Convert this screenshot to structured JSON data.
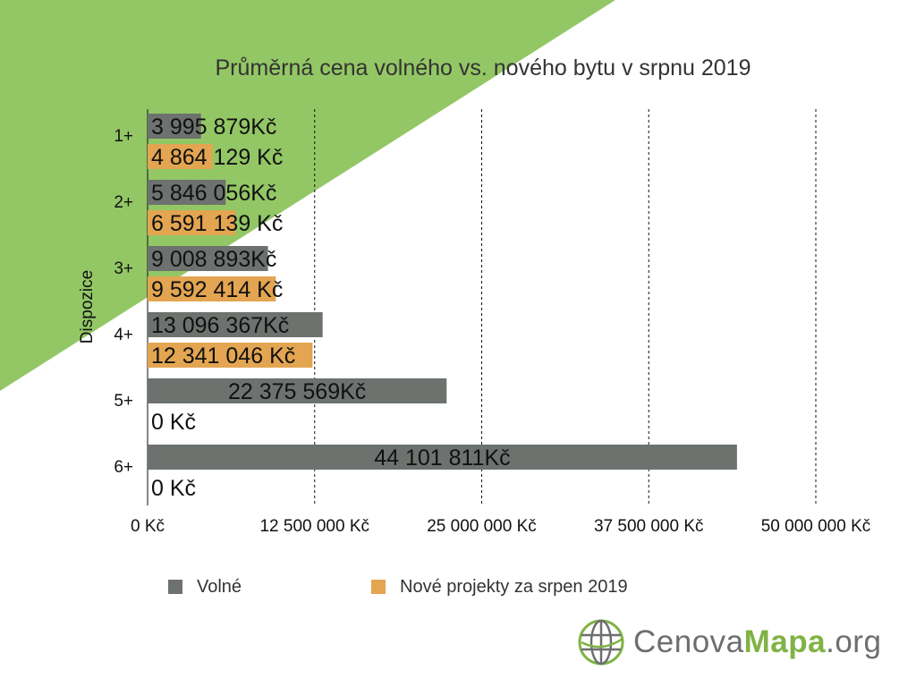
{
  "colors": {
    "background_triangle": "#93c765",
    "volne": "#6d726f",
    "nove": "#e3a551",
    "grid": "#111111",
    "text": "#111111",
    "logo_grey": "#6d6e70",
    "logo_green": "#7fb344"
  },
  "chart_data": {
    "type": "bar",
    "orientation": "horizontal",
    "title": "Průměrná cena volného vs. nového bytu v srpnu 2019",
    "ylabel": "Dispozice",
    "xlabel": "",
    "categories": [
      "1+",
      "2+",
      "3+",
      "4+",
      "5+",
      "6+"
    ],
    "xlim": [
      0,
      50000000
    ],
    "xticks": [
      0,
      12500000,
      25000000,
      37500000,
      50000000
    ],
    "xtick_labels": [
      "0 Kč",
      "12 500 000 Kč",
      "25 000 000 Kč",
      "37 500 000 Kč",
      "50 000 000 Kč"
    ],
    "gridlines": "dashed vertical",
    "legend_position": "bottom",
    "series": [
      {
        "name": "Volné",
        "color_key": "volne",
        "values": [
          3995879,
          5846056,
          9008893,
          13096367,
          22375569,
          44101811
        ],
        "labels": [
          "3 995 879Kč",
          "5 846 056Kč",
          "9 008 893Kč",
          "13 096 367Kč",
          "22 375 569Kč",
          "44 101 811Kč"
        ]
      },
      {
        "name": "Nové projekty za srpen 2019",
        "color_key": "nove",
        "values": [
          4864129,
          6591139,
          9592414,
          12341046,
          0,
          0
        ],
        "labels": [
          "4 864 129 Kč",
          "6 591 139 Kč",
          "9 592 414 Kč",
          "12 341 046 Kč",
          "0 Kč",
          "0 Kč"
        ]
      }
    ]
  },
  "logo": {
    "part1": "Cenova",
    "part2": "Mapa",
    "part3": ".org"
  }
}
